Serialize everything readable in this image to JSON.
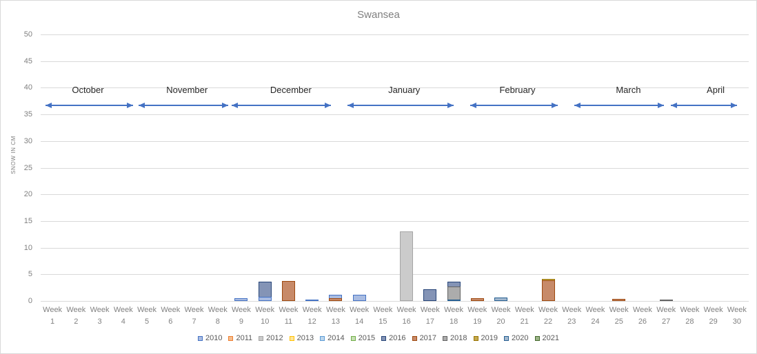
{
  "chart_data": {
    "type": "bar",
    "title": "Swansea",
    "xlabel": "",
    "ylabel": "SNOW IN CM",
    "ylim": [
      0,
      50
    ],
    "yticks": [
      0,
      5,
      10,
      15,
      20,
      25,
      30,
      35,
      40,
      45,
      50
    ],
    "grid": true,
    "legend_position": "bottom",
    "categories": [
      "Week 1",
      "Week 2",
      "Week 3",
      "Week 4",
      "Week 5",
      "Week 6",
      "Week 7",
      "Week 8",
      "Week 9",
      "Week 10",
      "Week 11",
      "Week 12",
      "Week 13",
      "Week 14",
      "Week 15",
      "Week 16",
      "Week 17",
      "Week 18",
      "Week 19",
      "Week 20",
      "Week 21",
      "Week 22",
      "Week 23",
      "Week 24",
      "Week 25",
      "Week 26",
      "Week 27",
      "Week 28",
      "Week 29",
      "Week 30"
    ],
    "legend_entries": [
      "2010",
      "2011",
      "2012",
      "2013",
      "2014",
      "2015",
      "2016",
      "2017",
      "2018",
      "2019",
      "2020",
      "2021"
    ],
    "bars": [
      {
        "week": 9,
        "year": "2010",
        "value": 0.5
      },
      {
        "week": 10,
        "year": "2016",
        "value": 3.6
      },
      {
        "week": 10,
        "year": "2010",
        "value": 0.8
      },
      {
        "week": 11,
        "year": "2017",
        "value": 3.8
      },
      {
        "week": 12,
        "year": "2010",
        "value": 0.3
      },
      {
        "week": 13,
        "year": "2010",
        "value": 1.2
      },
      {
        "week": 13,
        "year": "2017",
        "value": 0.5
      },
      {
        "week": 14,
        "year": "2010",
        "value": 1.1
      },
      {
        "week": 16,
        "year": "2012",
        "value": 13
      },
      {
        "week": 17,
        "year": "2016",
        "value": 2.2
      },
      {
        "week": 18,
        "year": "2016",
        "value": 3.6
      },
      {
        "week": 18,
        "year": "2018",
        "value": 2.7
      },
      {
        "week": 18,
        "year": "2020",
        "value": 0.3
      },
      {
        "week": 19,
        "year": "2017",
        "value": 0.5
      },
      {
        "week": 20,
        "year": "2020",
        "value": 0.6
      },
      {
        "week": 22,
        "year": "2019",
        "value": 4.1
      },
      {
        "week": 22,
        "year": "2017",
        "value": 3.9
      },
      {
        "week": 25,
        "year": "2017",
        "value": 0.4
      },
      {
        "week": 27,
        "year": "2018",
        "value": 0.2
      }
    ],
    "months": [
      {
        "label": "October",
        "span": [
          0.2,
          3.9
        ],
        "label_at": 2.0
      },
      {
        "label": "November",
        "span": [
          4.15,
          7.95
        ],
        "label_at": 6.2
      },
      {
        "label": "December",
        "span": [
          8.1,
          12.3
        ],
        "label_at": 10.6
      },
      {
        "label": "January",
        "span": [
          13.0,
          17.5
        ],
        "label_at": 15.4
      },
      {
        "label": "February",
        "span": [
          18.2,
          21.9
        ],
        "label_at": 20.2
      },
      {
        "label": "March",
        "span": [
          22.6,
          26.4
        ],
        "label_at": 24.9
      },
      {
        "label": "April",
        "span": [
          26.7,
          29.5
        ],
        "label_at": 28.6
      }
    ]
  },
  "colors": {
    "series": {
      "2010": {
        "fill": "#A9BCE2",
        "border": "#4472C4"
      },
      "2011": {
        "fill": "#F5BE8E",
        "border": "#ED7D31"
      },
      "2012": {
        "fill": "#CBCBCB",
        "border": "#A5A5A5"
      },
      "2013": {
        "fill": "#FFE699",
        "border": "#FFC000"
      },
      "2014": {
        "fill": "#BDD7EE",
        "border": "#5B9BD5"
      },
      "2015": {
        "fill": "#C6E0B4",
        "border": "#70AD47"
      },
      "2016": {
        "fill": "#8494B6",
        "border": "#264478"
      },
      "2017": {
        "fill": "#C78A69",
        "border": "#9E480E"
      },
      "2018": {
        "fill": "#ACACAC",
        "border": "#636363"
      },
      "2019": {
        "fill": "#C4A94D",
        "border": "#997300"
      },
      "2020": {
        "fill": "#A3B8CE",
        "border": "#255E91"
      },
      "2021": {
        "fill": "#9CB488",
        "border": "#43682B"
      }
    },
    "grid": "#D9D9D9",
    "axis_text": "#808080",
    "title_text": "#7F7F7F",
    "month_text": "#262626",
    "arrow": "#4472C4",
    "legend_text": "#595959"
  }
}
